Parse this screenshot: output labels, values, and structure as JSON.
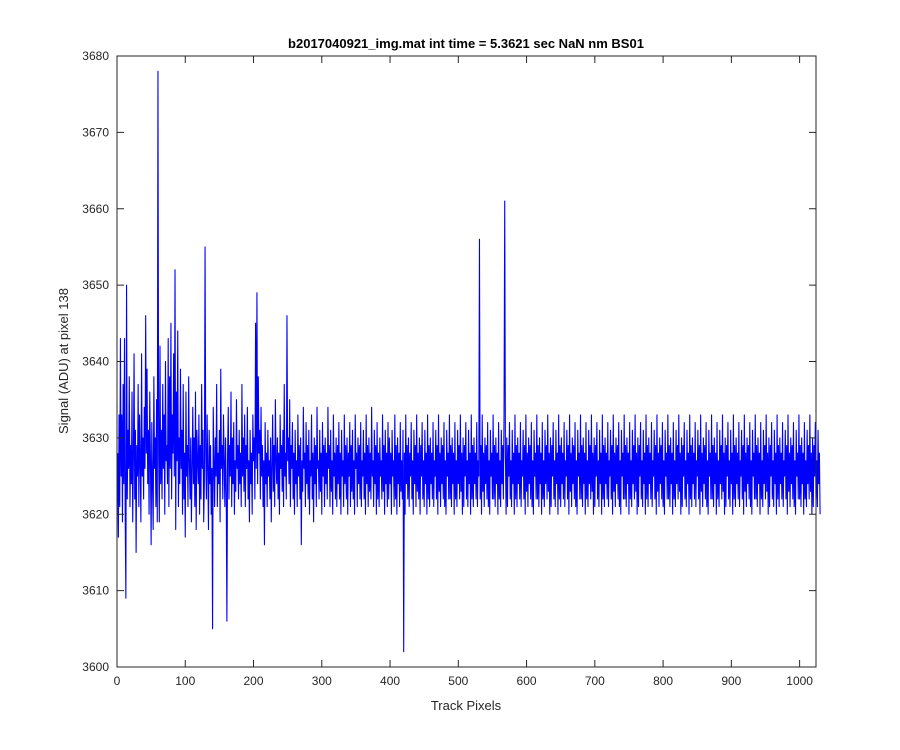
{
  "chart_data": {
    "type": "line",
    "title": "b2017040921_img.mat int time = 5.3621 sec  NaN nm BS01",
    "xlabel": "Track Pixels",
    "ylabel": "Signal (ADU) at pixel 138",
    "xlim": [
      0,
      1024
    ],
    "ylim": [
      3600,
      3680
    ],
    "xticks": [
      0,
      100,
      200,
      300,
      400,
      500,
      600,
      700,
      800,
      900,
      1000
    ],
    "yticks": [
      3600,
      3610,
      3620,
      3630,
      3640,
      3650,
      3660,
      3670,
      3680
    ],
    "grid": false,
    "legend": "none",
    "series": [
      {
        "color": "#0000ff",
        "x_start": 1,
        "x_step": 1,
        "values": [
          3628,
          3617,
          3633,
          3621,
          3643,
          3625,
          3633,
          3619,
          3637,
          3624,
          3643,
          3620,
          3609,
          3650,
          3622,
          3631,
          3626,
          3638,
          3621,
          3629,
          3624,
          3636,
          3619,
          3627,
          3641,
          3622,
          3631,
          3615,
          3629,
          3625,
          3637,
          3621,
          3633,
          3627,
          3619,
          3641,
          3625,
          3630,
          3622,
          3634,
          3626,
          3646,
          3628,
          3639,
          3624,
          3631,
          3620,
          3636,
          3627,
          3616,
          3632,
          3624,
          3618,
          3638,
          3626,
          3630,
          3621,
          3635,
          3619,
          3678,
          3628,
          3619,
          3642,
          3624,
          3631,
          3622,
          3637,
          3626,
          3633,
          3620,
          3640,
          3627,
          3629,
          3624,
          3643,
          3621,
          3638,
          3626,
          3645,
          3622,
          3633,
          3628,
          3641,
          3625,
          3652,
          3618,
          3636,
          3627,
          3644,
          3621,
          3630,
          3624,
          3639,
          3626,
          3631,
          3620,
          3637,
          3622,
          3628,
          3617,
          3636,
          3625,
          3629,
          3621,
          3638,
          3627,
          3622,
          3630,
          3619,
          3626,
          3634,
          3624,
          3630,
          3621,
          3636,
          3618,
          3631,
          3627,
          3624,
          3633,
          3620,
          3629,
          3622,
          3637,
          3626,
          3631,
          3619,
          3624,
          3655,
          3628,
          3622,
          3633,
          3626,
          3618,
          3631,
          3624,
          3629,
          3620,
          3626,
          3605,
          3634,
          3627,
          3621,
          3630,
          3625,
          3637,
          3621,
          3628,
          3624,
          3631,
          3619,
          3639,
          3626,
          3629,
          3622,
          3633,
          3627,
          3621,
          3630,
          3623,
          3606,
          3628,
          3634,
          3622,
          3629,
          3625,
          3636,
          3621,
          3630,
          3624,
          3632,
          3620,
          3627,
          3623,
          3635,
          3626,
          3629,
          3622,
          3631,
          3624,
          3628,
          3621,
          3637,
          3625,
          3630,
          3623,
          3633,
          3621,
          3629,
          3626,
          3634,
          3622,
          3627,
          3619,
          3631,
          3624,
          3628,
          3620,
          3633,
          3627,
          3630,
          3622,
          3645,
          3626,
          3649,
          3624,
          3638,
          3628,
          3631,
          3622,
          3634,
          3625,
          3629,
          3621,
          3627,
          3616,
          3632,
          3624,
          3628,
          3621,
          3631,
          3625,
          3627,
          3622,
          3630,
          3619,
          3626,
          3633,
          3623,
          3629,
          3621,
          3635,
          3627,
          3624,
          3630,
          3622,
          3628,
          3620,
          3633,
          3626,
          3629,
          3623,
          3631,
          3621,
          3637,
          3625,
          3628,
          3622,
          3646,
          3627,
          3630,
          3624,
          3635,
          3621,
          3629,
          3626,
          3632,
          3622,
          3628,
          3620,
          3631,
          3624,
          3627,
          3621,
          3633,
          3625,
          3629,
          3622,
          3630,
          3616,
          3627,
          3623,
          3634,
          3626,
          3628,
          3621,
          3632,
          3624,
          3629,
          3622,
          3631,
          3620,
          3627,
          3625,
          3633,
          3622,
          3628,
          3619,
          3630,
          3624,
          3629,
          3621,
          3634,
          3626,
          3627,
          3622,
          3631,
          3623,
          3628,
          3620,
          3632,
          3625,
          3629,
          3621,
          3630,
          3624,
          3628,
          3622,
          3634,
          3626,
          3629,
          3621,
          3631,
          3623,
          3627,
          3620,
          3633,
          3625,
          3628,
          3622,
          3630,
          3621,
          3629,
          3624,
          3632,
          3622,
          3628,
          3620,
          3631,
          3625,
          3627,
          3621,
          3633,
          3624,
          3629,
          3622,
          3630,
          3620,
          3628,
          3625,
          3632,
          3621,
          3629,
          3623,
          3631,
          3622,
          3627,
          3620,
          3633,
          3626,
          3628,
          3621,
          3630,
          3624,
          3629,
          3622,
          3632,
          3621,
          3627,
          3625,
          3631,
          3622,
          3628,
          3620,
          3633,
          3624,
          3629,
          3621,
          3630,
          3623,
          3628,
          3622,
          3634,
          3625,
          3627,
          3621,
          3631,
          3624,
          3629,
          3620,
          3632,
          3622,
          3628,
          3621,
          3630,
          3625,
          3627,
          3622,
          3633,
          3623,
          3629,
          3620,
          3631,
          3624,
          3628,
          3621,
          3632,
          3622,
          3630,
          3624,
          3628,
          3620,
          3631,
          3625,
          3627,
          3621,
          3633,
          3622,
          3629,
          3620,
          3630,
          3624,
          3628,
          3621,
          3632,
          3623,
          3627,
          3622,
          3631,
          3602,
          3628,
          3620,
          3633,
          3624,
          3629,
          3622,
          3630,
          3621,
          3628,
          3625,
          3632,
          3622,
          3627,
          3620,
          3631,
          3624,
          3629,
          3621,
          3633,
          3623,
          3628,
          3622,
          3630,
          3620,
          3629,
          3625,
          3632,
          3622,
          3627,
          3621,
          3631,
          3624,
          3628,
          3620,
          3633,
          3622,
          3629,
          3621,
          3630,
          3624,
          3628,
          3622,
          3632,
          3621,
          3627,
          3625,
          3631,
          3622,
          3629,
          3620,
          3633,
          3623,
          3628,
          3621,
          3630,
          3624,
          3629,
          3622,
          3632,
          3621,
          3627,
          3620,
          3631,
          3625,
          3628,
          3622,
          3633,
          3622,
          3629,
          3621,
          3630,
          3624,
          3628,
          3620,
          3632,
          3622,
          3627,
          3621,
          3631,
          3624,
          3629,
          3622,
          3633,
          3623,
          3628,
          3620,
          3630,
          3621,
          3629,
          3625,
          3632,
          3622,
          3627,
          3621,
          3631,
          3624,
          3628,
          3620,
          3633,
          3622,
          3629,
          3621,
          3630,
          3624,
          3628,
          3622,
          3632,
          3621,
          3627,
          3625,
          3656,
          3622,
          3629,
          3620,
          3633,
          3623,
          3628,
          3621,
          3630,
          3624,
          3629,
          3622,
          3632,
          3621,
          3627,
          3620,
          3631,
          3625,
          3628,
          3622,
          3633,
          3622,
          3629,
          3621,
          3630,
          3624,
          3628,
          3620,
          3632,
          3622,
          3627,
          3621,
          3631,
          3624,
          3629,
          3622,
          3633,
          3661,
          3628,
          3620,
          3630,
          3621,
          3629,
          3625,
          3632,
          3622,
          3627,
          3621,
          3631,
          3624,
          3628,
          3620,
          3633,
          3622,
          3629,
          3621,
          3630,
          3624,
          3628,
          3622,
          3632,
          3621,
          3627,
          3625,
          3631,
          3622,
          3629,
          3620,
          3633,
          3623,
          3628,
          3621,
          3630,
          3624,
          3629,
          3622,
          3632,
          3621,
          3627,
          3620,
          3631,
          3625,
          3628,
          3622,
          3633,
          3622,
          3629,
          3621,
          3630,
          3624,
          3628,
          3620,
          3632,
          3622,
          3627,
          3621,
          3631,
          3624,
          3629,
          3622,
          3633,
          3623,
          3628,
          3620,
          3630,
          3621,
          3629,
          3625,
          3632,
          3622,
          3627,
          3621,
          3631,
          3624,
          3628,
          3620,
          3633,
          3622,
          3629,
          3621,
          3630,
          3624,
          3628,
          3622,
          3632,
          3621,
          3627,
          3625,
          3631,
          3622,
          3629,
          3620,
          3633,
          3623,
          3628,
          3621,
          3630,
          3624,
          3629,
          3622,
          3632,
          3621,
          3627,
          3620,
          3631,
          3625,
          3628,
          3622,
          3633,
          3622,
          3629,
          3621,
          3630,
          3624,
          3628,
          3620,
          3632,
          3622,
          3627,
          3621,
          3631,
          3624,
          3629,
          3622,
          3633,
          3623,
          3628,
          3620,
          3630,
          3621,
          3629,
          3625,
          3632,
          3622,
          3627,
          3621,
          3631,
          3624,
          3628,
          3620,
          3633,
          3622,
          3629,
          3621,
          3630,
          3624,
          3628,
          3622,
          3632,
          3621,
          3627,
          3625,
          3631,
          3622,
          3629,
          3620,
          3633,
          3623,
          3628,
          3621,
          3630,
          3624,
          3629,
          3622,
          3632,
          3621,
          3627,
          3620,
          3631,
          3625,
          3628,
          3622,
          3633,
          3622,
          3629,
          3621,
          3630,
          3624,
          3628,
          3620,
          3632,
          3622,
          3627,
          3621,
          3631,
          3624,
          3629,
          3622,
          3633,
          3623,
          3628,
          3620,
          3630,
          3621,
          3629,
          3625,
          3632,
          3622,
          3627,
          3621,
          3631,
          3624,
          3628,
          3620,
          3633,
          3622,
          3629,
          3621,
          3630,
          3624,
          3628,
          3622,
          3632,
          3621,
          3627,
          3625,
          3631,
          3622,
          3629,
          3620,
          3633,
          3623,
          3628,
          3621,
          3630,
          3624,
          3629,
          3622,
          3632,
          3621,
          3627,
          3620,
          3631,
          3625,
          3628,
          3622,
          3633,
          3622,
          3629,
          3621,
          3630,
          3624,
          3628,
          3620,
          3632,
          3622,
          3627,
          3621,
          3631,
          3624,
          3629,
          3622,
          3633,
          3623,
          3628,
          3620,
          3630,
          3621,
          3629,
          3625,
          3632,
          3622,
          3627,
          3621,
          3631,
          3624,
          3628,
          3620,
          3633,
          3622,
          3629,
          3621,
          3630,
          3624,
          3628,
          3622,
          3632,
          3621,
          3627,
          3625,
          3631,
          3622,
          3629,
          3620,
          3633,
          3623,
          3628,
          3621,
          3630,
          3624,
          3629,
          3622,
          3632,
          3621,
          3627,
          3620,
          3631,
          3625,
          3628,
          3622,
          3633,
          3622,
          3629,
          3621,
          3630,
          3624,
          3628,
          3620,
          3632,
          3622,
          3627,
          3621,
          3631,
          3624,
          3629,
          3622,
          3633,
          3623,
          3628,
          3620,
          3630,
          3621,
          3629,
          3625,
          3632,
          3622,
          3627,
          3621,
          3631,
          3624,
          3628,
          3620,
          3633,
          3622,
          3629,
          3621,
          3630,
          3624,
          3628,
          3622,
          3632,
          3621,
          3627,
          3625,
          3631,
          3622,
          3629,
          3620,
          3633,
          3623,
          3628,
          3621,
          3630,
          3624,
          3629,
          3622,
          3632,
          3621,
          3627,
          3620,
          3631,
          3625,
          3628,
          3622,
          3633,
          3622,
          3629,
          3621,
          3630,
          3624,
          3628,
          3620,
          3632,
          3622,
          3627,
          3621,
          3631,
          3624,
          3629,
          3622,
          3633,
          3623,
          3628,
          3620,
          3630,
          3621,
          3629,
          3625,
          3632,
          3622,
          3627,
          3621,
          3631,
          3624,
          3628,
          3620,
          3633,
          3622,
          3629,
          3621,
          3630,
          3624,
          3628,
          3622,
          3632,
          3621,
          3627,
          3625,
          3631,
          3622,
          3629,
          3620,
          3633,
          3623,
          3628,
          3621,
          3630,
          3624,
          3629,
          3622,
          3632,
          3621,
          3627,
          3620,
          3631,
          3625,
          3628,
          3622,
          3633,
          3622,
          3629,
          3621,
          3630,
          3624,
          3628,
          3620,
          3632,
          3622,
          3627,
          3621,
          3631,
          3624,
          3629,
          3622,
          3633,
          3623,
          3628,
          3620,
          3630,
          3621,
          3629,
          3625,
          3632,
          3622,
          3627,
          3621,
          3631,
          3624,
          3628,
          3620
        ]
      }
    ]
  }
}
